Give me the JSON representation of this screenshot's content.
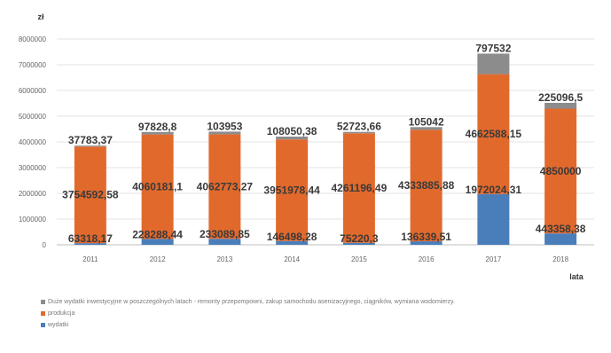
{
  "chart_data": {
    "type": "bar",
    "stacked": true,
    "y_unit": "zł",
    "xlabel": "lata",
    "ylim": [
      0,
      8000000
    ],
    "y_ticks": [
      "0",
      "1000000",
      "2000000",
      "3000000",
      "4000000",
      "5000000",
      "6000000",
      "7000000",
      "8000000"
    ],
    "categories": [
      "2011",
      "2012",
      "2013",
      "2014",
      "2015",
      "2016",
      "2017",
      "2018"
    ],
    "series": [
      {
        "name": "wydatki",
        "color": "#4a7ebb",
        "values": [
          63318.17,
          228288.44,
          233089.85,
          146498.28,
          75220.3,
          136339.51,
          1972024.31,
          443358.38
        ],
        "labels": [
          "63318,17",
          "228288,44",
          "233089,85",
          "146498,28",
          "75220,3",
          "136339,51",
          "1972024,31",
          "443358,38"
        ]
      },
      {
        "name": "produkcja",
        "color": "#e2692c",
        "values": [
          3754592.58,
          4060181.1,
          4062773.27,
          3951978.44,
          4261196.49,
          4333885.88,
          4662588.15,
          4850000
        ],
        "labels": [
          "3754592,58",
          "4060181,1",
          "4062773,27",
          "3951978,44",
          "4261196,49",
          "4333885,88",
          "4662588,15",
          "4850000"
        ]
      },
      {
        "name": "Duże wydatki inwestycyjne w poszczególnych latach - remonty przepompowni, zakup samochodu asenizacyjnego, ciągników, wymiana wodomierzy.",
        "color": "#8c8c8c",
        "values": [
          37783.37,
          97828.8,
          103953,
          108050.38,
          52723.66,
          105042,
          797532,
          225096.5
        ],
        "labels": [
          "37783,37",
          "97828,8",
          "103953",
          "108050,38",
          "52723,66",
          "105042",
          "797532",
          "225096,5"
        ]
      }
    ],
    "grid": true,
    "legend_position": "bottom"
  }
}
